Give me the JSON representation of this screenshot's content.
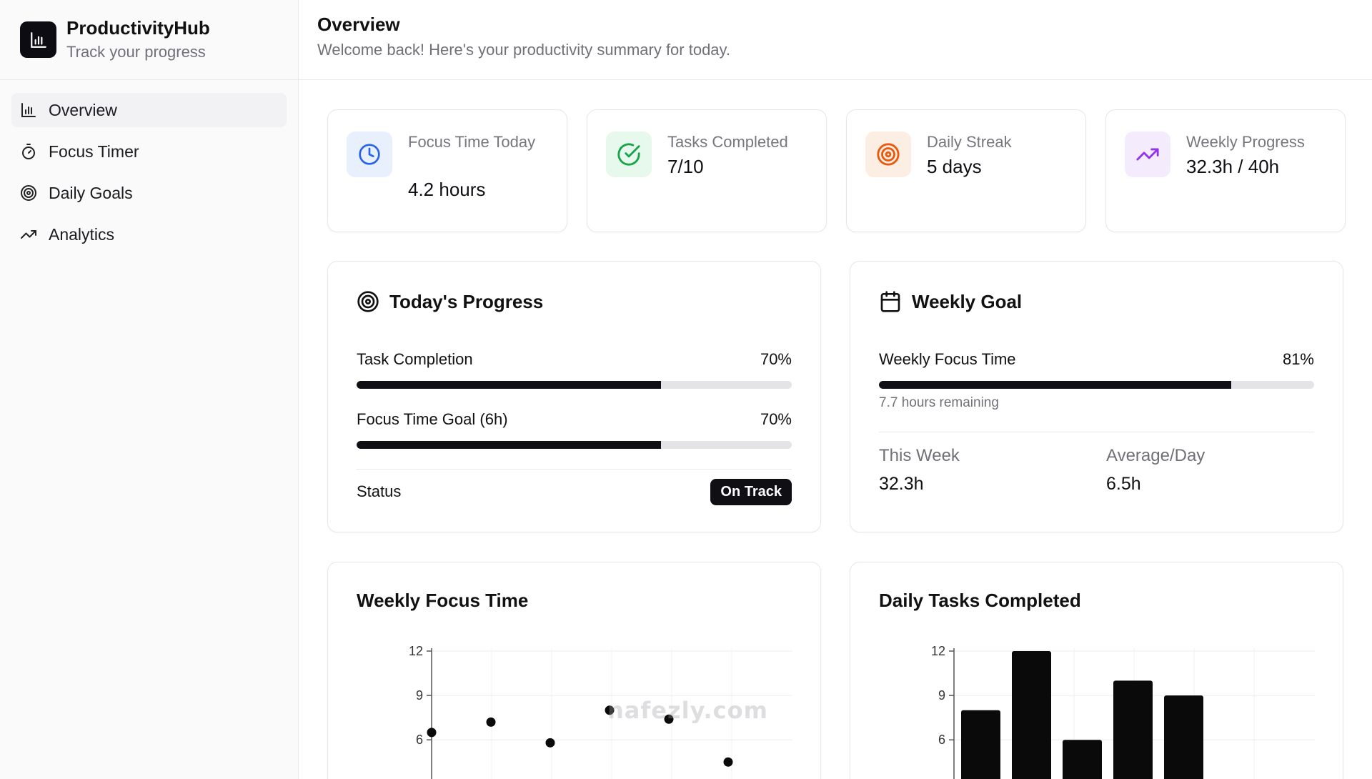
{
  "brand": {
    "title": "ProductivityHub",
    "subtitle": "Track your progress"
  },
  "sidebar": {
    "items": [
      {
        "label": "Overview",
        "icon": "bar-chart-icon",
        "active": true
      },
      {
        "label": "Focus Timer",
        "icon": "stopwatch-icon",
        "active": false
      },
      {
        "label": "Daily Goals",
        "icon": "target-icon",
        "active": false
      },
      {
        "label": "Analytics",
        "icon": "trending-up-icon",
        "active": false
      }
    ]
  },
  "header": {
    "title": "Overview",
    "subtitle": "Welcome back! Here's your productivity summary for today."
  },
  "stats": [
    {
      "label": "Focus Time Today",
      "value": "4.2 hours",
      "icon": "clock-icon",
      "color": "#2563eb",
      "bg": "#e8f0fe"
    },
    {
      "label": "Tasks Completed",
      "value": "7/10",
      "icon": "check-circle-icon",
      "color": "#16a34a",
      "bg": "#e7f8ec"
    },
    {
      "label": "Daily Streak",
      "value": "5 days",
      "icon": "target-icon",
      "color": "#ea580c",
      "bg": "#fdeee3"
    },
    {
      "label": "Weekly Progress",
      "value": "32.3h / 40h",
      "icon": "trending-up-icon",
      "color": "#9333ea",
      "bg": "#f4ebfd"
    }
  ],
  "today_progress": {
    "title": "Today's Progress",
    "rows": [
      {
        "label": "Task Completion",
        "percent_label": "70%",
        "fraction": 0.7
      },
      {
        "label": "Focus Time Goal (6h)",
        "percent_label": "70%",
        "fraction": 0.7
      }
    ],
    "status_label": "Status",
    "status_badge": "On Track"
  },
  "weekly_goal": {
    "title": "Weekly Goal",
    "label": "Weekly Focus Time",
    "percent_label": "81%",
    "fraction": 0.81,
    "remaining": "7.7 hours remaining",
    "this_week_label": "This Week",
    "this_week_value": "32.3h",
    "avg_label": "Average/Day",
    "avg_value": "6.5h"
  },
  "charts": {
    "focus_title": "Weekly Focus Time",
    "tasks_title": "Daily Tasks Completed"
  },
  "chart_data": [
    {
      "type": "scatter",
      "title": "Weekly Focus Time",
      "y_ticks": [
        "6",
        "9",
        "12"
      ],
      "ylim": [
        0,
        12
      ],
      "x": [
        1,
        2,
        3,
        4,
        5,
        6
      ],
      "values": [
        6.5,
        7.2,
        5.8,
        8.0,
        7.4,
        4.5
      ],
      "grid": true
    },
    {
      "type": "bar",
      "title": "Daily Tasks Completed",
      "y_ticks": [
        "6",
        "9",
        "12"
      ],
      "ylim": [
        0,
        12
      ],
      "values": [
        8,
        12,
        6,
        10,
        9
      ],
      "grid": true
    }
  ],
  "watermark": "nafezly.com"
}
